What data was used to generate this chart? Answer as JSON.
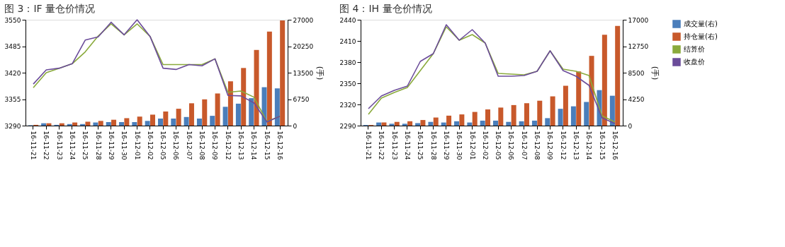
{
  "chart_data": [
    {
      "type": "bar",
      "title": "图 3：IF 量仓价情况",
      "y2label": "(手)",
      "legend": "right",
      "grid": false,
      "categories": [
        "16-11-21",
        "16-11-22",
        "16-11-23",
        "16-11-24",
        "16-11-25",
        "16-11-28",
        "16-11-29",
        "16-11-30",
        "16-12-01",
        "16-12-02",
        "16-12-05",
        "16-12-06",
        "16-12-07",
        "16-12-08",
        "16-12-09",
        "16-12-12",
        "16-12-13",
        "16-12-14",
        "16-12-15",
        "16-12-16"
      ],
      "ylim": [
        3290,
        3550
      ],
      "yticks": [
        3290,
        3355,
        3420,
        3485,
        3550
      ],
      "y2lim": [
        0,
        27000
      ],
      "y2ticks": [
        0,
        6750,
        13500,
        20250,
        27000
      ],
      "series": [
        {
          "name": "成交量(右)",
          "type": "bar",
          "axis": "y2",
          "color": "#4a7ebb",
          "values": [
            100,
            600,
            200,
            400,
            400,
            800,
            900,
            900,
            900,
            1200,
            1800,
            1800,
            2200,
            1800,
            2500,
            4800,
            5600,
            7000,
            9800,
            9500
          ]
        },
        {
          "name": "持仓量(右)",
          "type": "bar",
          "axis": "y2",
          "color": "#c8592b",
          "values": [
            200,
            600,
            600,
            800,
            1000,
            1200,
            1500,
            1900,
            2300,
            2800,
            3600,
            4300,
            5700,
            6700,
            8200,
            11300,
            14700,
            19300,
            24000,
            26800
          ]
        },
        {
          "name": "结算价",
          "type": "line",
          "axis": "y",
          "color": "#8aaa3c",
          "values": [
            3383,
            3420,
            3431,
            3442,
            3471,
            3510,
            3540,
            3513,
            3540,
            3509,
            3440,
            3440,
            3440,
            3440,
            3454,
            3372,
            3375,
            3360,
            3300,
            3313
          ]
        },
        {
          "name": "收盘价",
          "type": "line",
          "axis": "y",
          "color": "#6b4c9a",
          "values": [
            3392,
            3427,
            3431,
            3442,
            3500,
            3508,
            3544,
            3513,
            3550,
            3509,
            3431,
            3428,
            3440,
            3437,
            3454,
            3364,
            3363,
            3346,
            3299,
            3313
          ]
        }
      ]
    },
    {
      "type": "bar",
      "title": "图 4：IH 量仓价情况",
      "y2label": "(手)",
      "legend": "right",
      "grid": false,
      "categories": [
        "16-11-21",
        "16-11-22",
        "16-11-23",
        "16-11-24",
        "16-11-25",
        "16-11-28",
        "16-11-29",
        "16-11-30",
        "16-12-01",
        "16-12-02",
        "16-12-05",
        "16-12-06",
        "16-12-07",
        "16-12-08",
        "16-12-09",
        "16-12-12",
        "16-12-13",
        "16-12-14",
        "16-12-15",
        "16-12-16"
      ],
      "ylim": [
        2290,
        2440
      ],
      "yticks": [
        2290,
        2320,
        2350,
        2380,
        2410,
        2440
      ],
      "y2lim": [
        0,
        17000
      ],
      "y2ticks": [
        0,
        4250,
        8500,
        12750,
        17000
      ],
      "series": [
        {
          "name": "成交量(右)",
          "type": "bar",
          "axis": "y2",
          "color": "#4a7ebb",
          "values": [
            100,
            500,
            300,
            300,
            400,
            600,
            500,
            700,
            500,
            800,
            800,
            600,
            700,
            800,
            1200,
            2700,
            3100,
            3800,
            5700,
            4800
          ]
        },
        {
          "name": "持仓量(右)",
          "type": "bar",
          "axis": "y2",
          "color": "#c8592b",
          "values": [
            100,
            500,
            600,
            700,
            900,
            1300,
            1600,
            1800,
            2200,
            2600,
            2900,
            3300,
            3600,
            4000,
            4700,
            6400,
            8700,
            11200,
            14600,
            16000
          ]
        },
        {
          "name": "结算价",
          "type": "line",
          "axis": "y",
          "color": "#8aaa3c",
          "values": [
            2306,
            2329,
            2337,
            2344,
            2368,
            2392,
            2430,
            2411,
            2419,
            2407,
            2364,
            2363,
            2362,
            2367,
            2396,
            2370,
            2367,
            2361,
            2304,
            2295
          ]
        },
        {
          "name": "收盘价",
          "type": "line",
          "axis": "y",
          "color": "#6b4c9a",
          "values": [
            2314,
            2332,
            2340,
            2346,
            2381,
            2392,
            2433,
            2411,
            2426,
            2407,
            2360,
            2360,
            2361,
            2367,
            2396,
            2368,
            2360,
            2347,
            2301,
            2293
          ]
        }
      ]
    }
  ]
}
